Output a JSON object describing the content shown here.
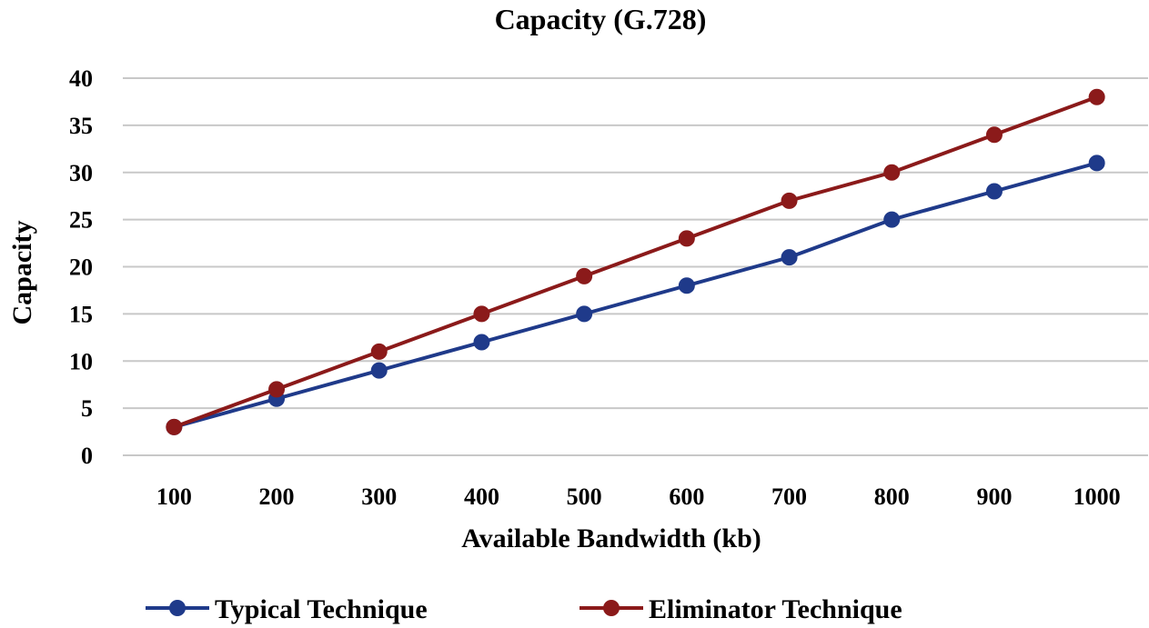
{
  "chart_data": {
    "type": "line",
    "title": "Capacity (G.728)",
    "xlabel": "Available Bandwidth (kb)",
    "ylabel": "Capacity",
    "categories": [
      "100",
      "200",
      "300",
      "400",
      "500",
      "600",
      "700",
      "800",
      "900",
      "1000"
    ],
    "ylim": [
      0,
      40
    ],
    "yticks": [
      "0",
      "5",
      "10",
      "15",
      "20",
      "25",
      "30",
      "35",
      "40"
    ],
    "grid": true,
    "legend_position": "bottom",
    "series": [
      {
        "name": "Typical Technique",
        "color": "#1f3a8a",
        "values": [
          3,
          6,
          9,
          12,
          15,
          18,
          21,
          25,
          28,
          31
        ]
      },
      {
        "name": "Eliminator Technique",
        "color": "#8b1a1a",
        "values": [
          3,
          7,
          11,
          15,
          19,
          23,
          27,
          30,
          34,
          38
        ]
      }
    ]
  }
}
